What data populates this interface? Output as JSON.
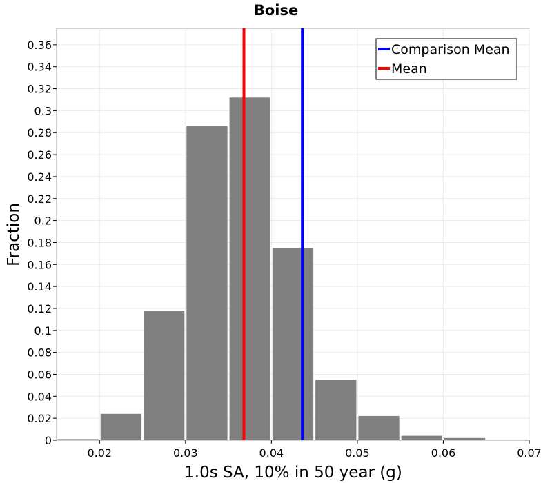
{
  "chart_data": {
    "type": "bar",
    "title": "Boise",
    "xlabel": "1.0s SA, 10% in 50 year (g)",
    "ylabel": "Fraction",
    "xlim": [
      0.015,
      0.07
    ],
    "ylim": [
      0,
      0.375
    ],
    "bin_width": 0.005,
    "x_ticks": [
      0.02,
      0.03,
      0.04,
      0.05,
      0.06,
      0.07
    ],
    "x_tick_labels": [
      "0.02",
      "0.03",
      "0.04",
      "0.05",
      "0.06",
      "0.07"
    ],
    "y_ticks": [
      0,
      0.02,
      0.04,
      0.06,
      0.08,
      0.1,
      0.12,
      0.14,
      0.16,
      0.18,
      0.2,
      0.22,
      0.24,
      0.26,
      0.28,
      0.3,
      0.32,
      0.34,
      0.36
    ],
    "y_tick_labels": [
      "0",
      "0.02",
      "0.04",
      "0.06",
      "0.08",
      "0.1",
      "0.12",
      "0.14",
      "0.16",
      "0.18",
      "0.2",
      "0.22",
      "0.24",
      "0.26",
      "0.28",
      "0.3",
      "0.32",
      "0.34",
      "0.36"
    ],
    "bins": [
      {
        "center": 0.0175,
        "value": 0.001
      },
      {
        "center": 0.0225,
        "value": 0.024
      },
      {
        "center": 0.0275,
        "value": 0.118
      },
      {
        "center": 0.0325,
        "value": 0.286
      },
      {
        "center": 0.0375,
        "value": 0.312
      },
      {
        "center": 0.0425,
        "value": 0.175
      },
      {
        "center": 0.0475,
        "value": 0.055
      },
      {
        "center": 0.0525,
        "value": 0.022
      },
      {
        "center": 0.0575,
        "value": 0.004
      },
      {
        "center": 0.0625,
        "value": 0.002
      },
      {
        "center": 0.0675,
        "value": 0.0
      }
    ],
    "bar_color": "#808080",
    "vertical_lines": [
      {
        "name": "Mean",
        "x": 0.0368,
        "color": "#ff0000"
      },
      {
        "name": "Comparison Mean",
        "x": 0.0436,
        "color": "#0000ff"
      }
    ],
    "legend": {
      "placement": "top-right",
      "entries": [
        {
          "label": "Comparison Mean",
          "color": "#0000ff"
        },
        {
          "label": "Mean",
          "color": "#ff0000"
        }
      ]
    },
    "grid": true
  }
}
